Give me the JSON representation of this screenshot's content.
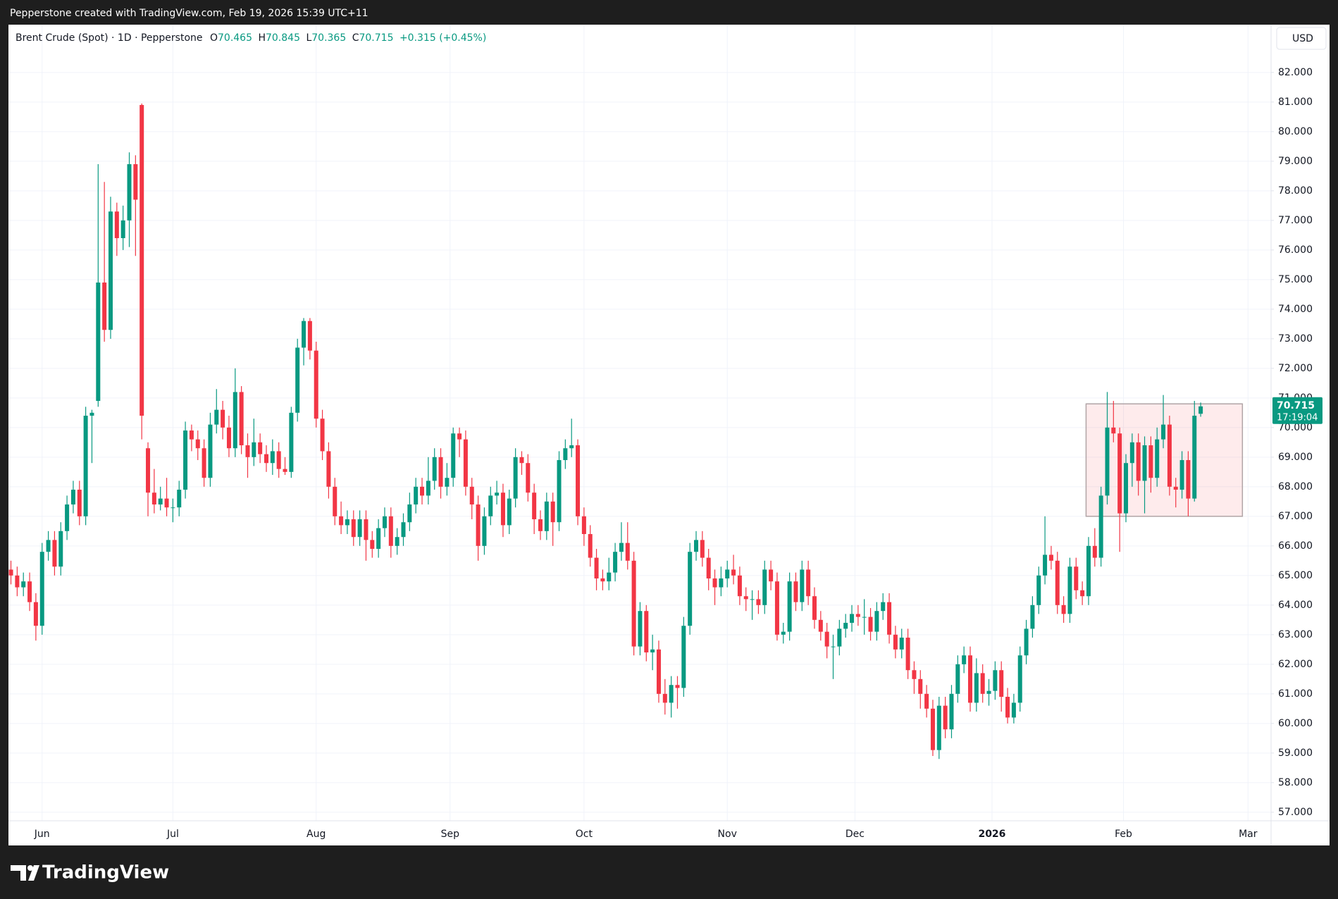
{
  "header": {
    "caption": "Pepperstone created with TradingView.com, Feb 19, 2026 15:39 UTC+11"
  },
  "footer": {
    "brand": "TradingView"
  },
  "chart_data": {
    "type": "candlestick",
    "legend": {
      "symbol": "Brent Crude (Spot) · 1D · Pepperstone",
      "open_label": "O",
      "high_label": "H",
      "low_label": "L",
      "close_label": "C",
      "change": "+0.315 (+0.45%)"
    },
    "currency": "USD",
    "countdown": "17:19:04",
    "up_color": "#089981",
    "down_color": "#f23645",
    "grid": true,
    "open": [
      65.2,
      65.0,
      64.6,
      64.8,
      64.1,
      63.3,
      65.8,
      66.2,
      65.3,
      66.5,
      67.4,
      67.9,
      67.0,
      70.4,
      70.9,
      74.9,
      73.3,
      77.3,
      76.4,
      77.0,
      78.9,
      80.9,
      69.3,
      67.8,
      67.4,
      67.6,
      67.3,
      67.3,
      67.9,
      69.9,
      69.6,
      69.3,
      68.3,
      70.1,
      70.6,
      70.0,
      69.3,
      71.2,
      69.4,
      69.0,
      69.5,
      69.1,
      68.8,
      69.2,
      68.6,
      68.5,
      70.5,
      72.7,
      73.6,
      72.6,
      70.3,
      69.2,
      68.0,
      67.0,
      66.7,
      66.9,
      66.3,
      66.9,
      66.2,
      65.9,
      66.6,
      67.0,
      66.0,
      66.3,
      66.8,
      67.4,
      68.0,
      67.7,
      68.2,
      69.0,
      68.0,
      68.3,
      69.8,
      69.6,
      68.0,
      67.4,
      66.0,
      67.0,
      67.7,
      67.8,
      66.7,
      67.6,
      69.0,
      68.8,
      67.8,
      66.9,
      66.5,
      67.5,
      66.8,
      68.9,
      69.3,
      69.4,
      67.0,
      66.4,
      65.6,
      64.9,
      64.8,
      65.1,
      65.8,
      66.1,
      65.5,
      62.6,
      63.8,
      62.4,
      62.5,
      61.0,
      60.7,
      61.3,
      61.2,
      63.3,
      65.8,
      66.2,
      65.6,
      64.9,
      64.6,
      64.9,
      65.2,
      65.0,
      64.3,
      64.2,
      64.2,
      64.0,
      65.2,
      64.8,
      63.0,
      63.1,
      64.8,
      64.1,
      65.2,
      64.3,
      63.5,
      63.1,
      62.6,
      62.6,
      63.2,
      63.4,
      63.7,
      63.6,
      63.6,
      63.1,
      63.8,
      64.1,
      63.0,
      62.5,
      62.9,
      61.8,
      61.5,
      61.0,
      60.5,
      59.1,
      60.6,
      59.8,
      61.0,
      62.0,
      62.3,
      60.7,
      61.7,
      61.0,
      61.1,
      61.8,
      60.9,
      60.2,
      60.7,
      62.3,
      63.2,
      64.0,
      65.0,
      65.7,
      65.5,
      64.0,
      63.7,
      65.3,
      64.5,
      64.3,
      66.0,
      65.6,
      67.7,
      70.0,
      69.8,
      67.1,
      68.8,
      69.5,
      68.2,
      69.4,
      68.3,
      69.6,
      70.1,
      68.0,
      67.9,
      68.9,
      67.6,
      70.465
    ],
    "high": [
      65.5,
      65.3,
      65.1,
      65.1,
      64.4,
      66.1,
      66.5,
      66.5,
      66.8,
      67.7,
      68.2,
      68.2,
      70.7,
      70.6,
      78.9,
      78.3,
      77.8,
      77.6,
      77.5,
      79.3,
      79.2,
      80.95,
      69.5,
      68.6,
      68.0,
      68.3,
      67.6,
      68.2,
      70.2,
      70.1,
      69.9,
      69.6,
      70.5,
      71.3,
      70.9,
      70.4,
      72.0,
      71.4,
      69.8,
      70.3,
      69.8,
      69.4,
      69.6,
      69.5,
      69.0,
      70.7,
      73.0,
      73.7,
      73.7,
      72.9,
      70.6,
      69.5,
      68.3,
      67.5,
      67.2,
      67.2,
      67.2,
      67.2,
      66.5,
      66.9,
      67.3,
      67.3,
      66.6,
      67.1,
      67.8,
      68.3,
      68.3,
      69.0,
      69.3,
      69.3,
      68.8,
      70.0,
      70.0,
      69.9,
      68.3,
      67.7,
      67.3,
      68.0,
      68.2,
      68.1,
      67.9,
      69.3,
      69.2,
      69.1,
      68.1,
      67.2,
      67.8,
      67.8,
      69.2,
      69.6,
      70.3,
      69.6,
      67.3,
      66.7,
      65.9,
      65.2,
      65.6,
      66.1,
      66.8,
      66.8,
      65.8,
      64.1,
      64.0,
      63.0,
      62.8,
      61.5,
      61.6,
      61.6,
      63.6,
      66.1,
      66.5,
      66.5,
      65.9,
      65.2,
      65.3,
      65.5,
      65.7,
      65.3,
      64.6,
      64.5,
      64.5,
      65.5,
      65.5,
      65.1,
      63.4,
      65.1,
      65.1,
      65.5,
      65.5,
      64.6,
      63.8,
      63.4,
      63.0,
      63.5,
      63.7,
      64.0,
      64.0,
      64.2,
      63.9,
      64.1,
      64.4,
      64.4,
      63.3,
      63.2,
      63.2,
      62.1,
      61.8,
      61.3,
      60.8,
      60.9,
      60.9,
      61.3,
      62.3,
      62.6,
      62.6,
      62.2,
      62.0,
      61.5,
      62.1,
      62.1,
      61.2,
      61.0,
      62.6,
      63.5,
      64.3,
      65.3,
      67.0,
      66.0,
      65.8,
      64.3,
      65.6,
      65.6,
      64.8,
      66.3,
      66.6,
      68.0,
      71.2,
      70.9,
      70.0,
      69.1,
      69.8,
      69.8,
      69.7,
      69.7,
      70.0,
      71.1,
      70.4,
      68.3,
      69.2,
      69.2,
      70.9,
      70.845
    ],
    "low": [
      64.7,
      64.3,
      64.3,
      63.8,
      62.8,
      63.0,
      65.5,
      65.0,
      65.0,
      66.2,
      67.1,
      66.7,
      66.7,
      68.8,
      70.7,
      72.9,
      73.0,
      75.8,
      76.0,
      76.1,
      75.8,
      69.6,
      67.0,
      67.1,
      67.2,
      67.0,
      66.8,
      67.0,
      67.6,
      69.2,
      68.9,
      68.0,
      68.0,
      69.8,
      69.6,
      69.0,
      69.0,
      69.1,
      68.3,
      68.7,
      68.8,
      68.5,
      68.4,
      68.3,
      68.4,
      68.3,
      70.2,
      72.1,
      72.3,
      70.0,
      68.9,
      67.6,
      66.7,
      66.4,
      66.4,
      66.0,
      66.0,
      65.5,
      65.6,
      65.6,
      66.3,
      65.6,
      65.7,
      66.0,
      66.5,
      67.1,
      67.4,
      67.4,
      67.9,
      67.6,
      67.7,
      68.0,
      69.0,
      67.7,
      66.9,
      65.5,
      65.7,
      66.7,
      67.4,
      66.3,
      66.4,
      67.3,
      68.4,
      67.5,
      66.4,
      66.2,
      66.2,
      66.0,
      66.5,
      68.6,
      69.0,
      66.7,
      66.0,
      65.3,
      64.5,
      64.5,
      64.5,
      64.8,
      65.5,
      65.2,
      62.3,
      62.3,
      62.1,
      61.8,
      60.7,
      60.3,
      60.2,
      60.5,
      60.9,
      63.0,
      65.5,
      65.3,
      64.5,
      64.0,
      64.3,
      64.6,
      64.7,
      64.0,
      63.8,
      63.5,
      63.7,
      63.7,
      64.5,
      62.8,
      62.7,
      62.8,
      63.8,
      63.8,
      64.0,
      63.2,
      62.8,
      62.2,
      61.5,
      62.3,
      62.9,
      63.1,
      63.3,
      63.0,
      62.8,
      62.8,
      63.5,
      62.7,
      62.2,
      62.2,
      61.5,
      61.0,
      60.5,
      60.2,
      58.9,
      58.8,
      59.5,
      59.5,
      60.7,
      61.7,
      60.4,
      60.4,
      60.7,
      60.6,
      60.8,
      60.4,
      60.0,
      60.0,
      60.4,
      62.0,
      62.9,
      63.7,
      64.7,
      65.2,
      63.7,
      63.4,
      63.4,
      64.2,
      64.0,
      64.0,
      65.3,
      65.3,
      67.4,
      69.5,
      65.8,
      66.8,
      68.0,
      67.7,
      67.1,
      67.8,
      68.0,
      69.3,
      67.7,
      67.3,
      67.6,
      67.0,
      67.5,
      70.365
    ],
    "close": [
      65.0,
      64.6,
      64.8,
      64.1,
      63.3,
      65.8,
      66.2,
      65.3,
      66.5,
      67.4,
      67.9,
      67.0,
      70.4,
      70.5,
      74.9,
      73.3,
      77.3,
      76.4,
      77.0,
      78.9,
      77.7,
      70.4,
      67.8,
      67.4,
      67.6,
      67.3,
      67.3,
      67.9,
      69.9,
      69.6,
      69.3,
      68.3,
      70.1,
      70.6,
      70.0,
      69.3,
      71.2,
      69.4,
      69.0,
      69.5,
      69.1,
      68.8,
      69.2,
      68.6,
      68.5,
      70.5,
      72.7,
      73.6,
      72.6,
      70.3,
      69.2,
      68.0,
      67.0,
      66.7,
      66.9,
      66.3,
      66.9,
      66.2,
      65.9,
      66.6,
      67.0,
      66.0,
      66.3,
      66.8,
      67.4,
      68.0,
      67.7,
      68.2,
      69.0,
      68.0,
      68.3,
      69.8,
      69.6,
      68.0,
      67.4,
      66.0,
      67.0,
      67.7,
      67.8,
      66.7,
      67.6,
      69.0,
      68.8,
      67.8,
      66.9,
      66.5,
      67.5,
      66.8,
      68.9,
      69.3,
      69.4,
      67.0,
      66.4,
      65.6,
      64.9,
      64.8,
      65.1,
      65.8,
      66.1,
      65.5,
      62.6,
      63.8,
      62.4,
      62.5,
      61.0,
      60.7,
      61.3,
      61.2,
      63.3,
      65.8,
      66.2,
      65.6,
      64.9,
      64.6,
      64.9,
      65.2,
      65.0,
      64.3,
      64.2,
      64.2,
      64.0,
      65.2,
      64.8,
      63.0,
      63.1,
      64.8,
      64.1,
      65.2,
      64.3,
      63.5,
      63.1,
      62.6,
      62.6,
      63.2,
      63.4,
      63.7,
      63.6,
      63.6,
      63.1,
      63.8,
      64.1,
      63.0,
      62.5,
      62.9,
      61.8,
      61.5,
      61.0,
      60.5,
      59.1,
      60.6,
      59.8,
      61.0,
      62.0,
      62.3,
      60.7,
      61.7,
      61.0,
      61.1,
      61.8,
      60.9,
      60.2,
      60.7,
      62.3,
      63.2,
      64.0,
      65.0,
      65.7,
      65.5,
      64.0,
      63.7,
      65.3,
      64.5,
      64.3,
      66.0,
      65.6,
      67.7,
      70.0,
      69.8,
      67.1,
      68.8,
      69.5,
      68.2,
      69.4,
      68.3,
      69.6,
      70.1,
      68.0,
      67.9,
      68.9,
      67.6,
      70.4,
      70.715
    ],
    "xlim": [
      -0.4,
      202.3
    ],
    "xticks": [
      {
        "value": 5,
        "label": "Jun"
      },
      {
        "value": 26,
        "label": "Jul"
      },
      {
        "value": 49,
        "label": "Aug"
      },
      {
        "value": 70.5,
        "label": "Sep"
      },
      {
        "value": 92,
        "label": "Oct"
      },
      {
        "value": 115,
        "label": "Nov"
      },
      {
        "value": 135.5,
        "label": "Dec"
      },
      {
        "value": 157.5,
        "label": "2026",
        "bold": true
      },
      {
        "value": 178.6,
        "label": "Feb"
      },
      {
        "value": 198.6,
        "label": "Mar"
      }
    ],
    "ylim": [
      56.71,
      83.615
    ],
    "yticks": [
      {
        "value": 57,
        "label": "57.000"
      },
      {
        "value": 58,
        "label": "58.000"
      },
      {
        "value": 59,
        "label": "59.000"
      },
      {
        "value": 60,
        "label": "60.000"
      },
      {
        "value": 61,
        "label": "61.000"
      },
      {
        "value": 62,
        "label": "62.000"
      },
      {
        "value": 63,
        "label": "63.000"
      },
      {
        "value": 64,
        "label": "64.000"
      },
      {
        "value": 65,
        "label": "65.000"
      },
      {
        "value": 66,
        "label": "66.000"
      },
      {
        "value": 67,
        "label": "67.000"
      },
      {
        "value": 68,
        "label": "68.000"
      },
      {
        "value": 69,
        "label": "69.000"
      },
      {
        "value": 70,
        "label": "70.000"
      },
      {
        "value": 71,
        "label": "71.000"
      },
      {
        "value": 72,
        "label": "72.000"
      },
      {
        "value": 73,
        "label": "73.000"
      },
      {
        "value": 74,
        "label": "74.000"
      },
      {
        "value": 75,
        "label": "75.000"
      },
      {
        "value": 76,
        "label": "76.000"
      },
      {
        "value": 77,
        "label": "77.000"
      },
      {
        "value": 78,
        "label": "78.000"
      },
      {
        "value": 79,
        "label": "79.000"
      },
      {
        "value": 80,
        "label": "80.000"
      },
      {
        "value": 81,
        "label": "81.000"
      },
      {
        "value": 82,
        "label": "82.000"
      }
    ],
    "rectangle": {
      "x": [
        172.6,
        197.7
      ],
      "y": [
        67.0,
        70.8
      ]
    }
  }
}
